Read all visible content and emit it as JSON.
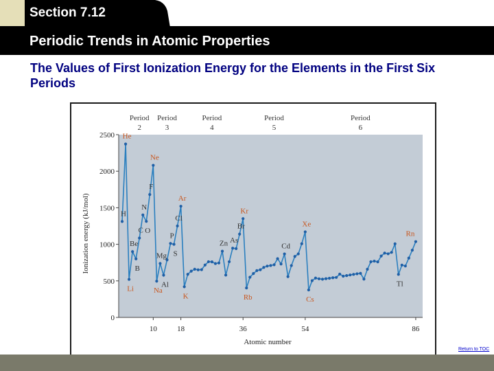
{
  "header": {
    "section": "Section 7.12",
    "title": "Periodic Trends in Atomic Properties"
  },
  "subtitle": "The Values of First Ionization Energy for the Elements in the First Six Periods",
  "footer": {
    "return_link": "Return to TOC"
  },
  "colors": {
    "plot_bg": "#c3ccd6",
    "line": "#2a7fbf",
    "marker": "#1f5fa6",
    "orange_label": "#c8561e",
    "title_bar": "#000000",
    "subtitle": "#000080"
  },
  "chart_data": {
    "type": "line",
    "title": "",
    "xlabel": "Atomic number",
    "ylabel": "Ionization energy (kJ/mol)",
    "xlim": [
      0,
      88
    ],
    "ylim": [
      0,
      2500
    ],
    "xticks": [
      10,
      18,
      36,
      54,
      86
    ],
    "yticks": [
      0,
      500,
      1000,
      1500,
      2000,
      2500
    ],
    "grid": false,
    "period_labels": [
      {
        "line1": "Period",
        "line2": "2",
        "x": 6
      },
      {
        "line1": "Period",
        "line2": "3",
        "x": 14
      },
      {
        "line1": "Period",
        "line2": "4",
        "x": 27
      },
      {
        "line1": "Period",
        "line2": "5",
        "x": 45
      },
      {
        "line1": "Period",
        "line2": "6",
        "x": 70
      }
    ],
    "x": [
      1,
      2,
      3,
      4,
      5,
      6,
      7,
      8,
      9,
      10,
      11,
      12,
      13,
      14,
      15,
      16,
      17,
      18,
      19,
      20,
      21,
      22,
      23,
      24,
      25,
      26,
      27,
      28,
      29,
      30,
      31,
      32,
      33,
      34,
      35,
      36,
      37,
      38,
      39,
      40,
      41,
      42,
      43,
      44,
      45,
      46,
      47,
      48,
      49,
      50,
      51,
      52,
      53,
      54,
      55,
      56,
      57,
      58,
      59,
      60,
      61,
      62,
      63,
      64,
      65,
      66,
      67,
      68,
      69,
      70,
      71,
      72,
      73,
      74,
      75,
      76,
      77,
      78,
      79,
      80,
      81,
      82,
      83,
      84,
      85,
      86
    ],
    "values": [
      1312,
      2372,
      520,
      900,
      801,
      1086,
      1402,
      1314,
      1681,
      2081,
      496,
      738,
      578,
      787,
      1012,
      1000,
      1251,
      1521,
      419,
      590,
      633,
      659,
      651,
      653,
      717,
      762,
      760,
      737,
      745,
      906,
      579,
      762,
      947,
      941,
      1140,
      1351,
      403,
      550,
      600,
      640,
      652,
      684,
      702,
      710,
      720,
      804,
      731,
      868,
      558,
      709,
      834,
      869,
      1008,
      1170,
      376,
      503,
      538,
      528,
      523,
      530,
      536,
      543,
      547,
      592,
      564,
      572,
      581,
      589,
      597,
      603,
      524,
      659,
      761,
      770,
      760,
      840,
      880,
      870,
      890,
      1007,
      589,
      716,
      703,
      812,
      920,
      1037
    ],
    "element_labels": [
      {
        "text": "He",
        "z": 2,
        "style": "orange"
      },
      {
        "text": "Ne",
        "z": 10,
        "style": "orange"
      },
      {
        "text": "F",
        "z": 9,
        "style": "dark"
      },
      {
        "text": "Ar",
        "z": 18,
        "style": "orange"
      },
      {
        "text": "N",
        "z": 7,
        "style": "dark"
      },
      {
        "text": "H",
        "z": 1,
        "style": "dark"
      },
      {
        "text": "O",
        "z": 8,
        "style": "dark"
      },
      {
        "text": "Cl",
        "z": 17,
        "style": "dark"
      },
      {
        "text": "Be",
        "z": 4,
        "style": "dark"
      },
      {
        "text": "C",
        "z": 6,
        "style": "dark"
      },
      {
        "text": "P",
        "z": 15,
        "style": "dark"
      },
      {
        "text": "S",
        "z": 16,
        "style": "dark"
      },
      {
        "text": "B",
        "z": 5,
        "style": "dark"
      },
      {
        "text": "Mg",
        "z": 12,
        "style": "dark"
      },
      {
        "text": "Al",
        "z": 13,
        "style": "dark"
      },
      {
        "text": "Li",
        "z": 3,
        "style": "orange"
      },
      {
        "text": "Na",
        "z": 11,
        "style": "orange"
      },
      {
        "text": "K",
        "z": 19,
        "style": "orange"
      },
      {
        "text": "Kr",
        "z": 36,
        "style": "orange"
      },
      {
        "text": "Br",
        "z": 35,
        "style": "dark"
      },
      {
        "text": "As",
        "z": 33,
        "style": "dark"
      },
      {
        "text": "Zn",
        "z": 30,
        "style": "dark"
      },
      {
        "text": "Rb",
        "z": 37,
        "style": "orange"
      },
      {
        "text": "Xe",
        "z": 54,
        "style": "orange"
      },
      {
        "text": "Cd",
        "z": 48,
        "style": "dark"
      },
      {
        "text": "Cs",
        "z": 55,
        "style": "orange"
      },
      {
        "text": "Rn",
        "z": 86,
        "style": "orange"
      },
      {
        "text": "Tl",
        "z": 81,
        "style": "dark"
      }
    ]
  }
}
